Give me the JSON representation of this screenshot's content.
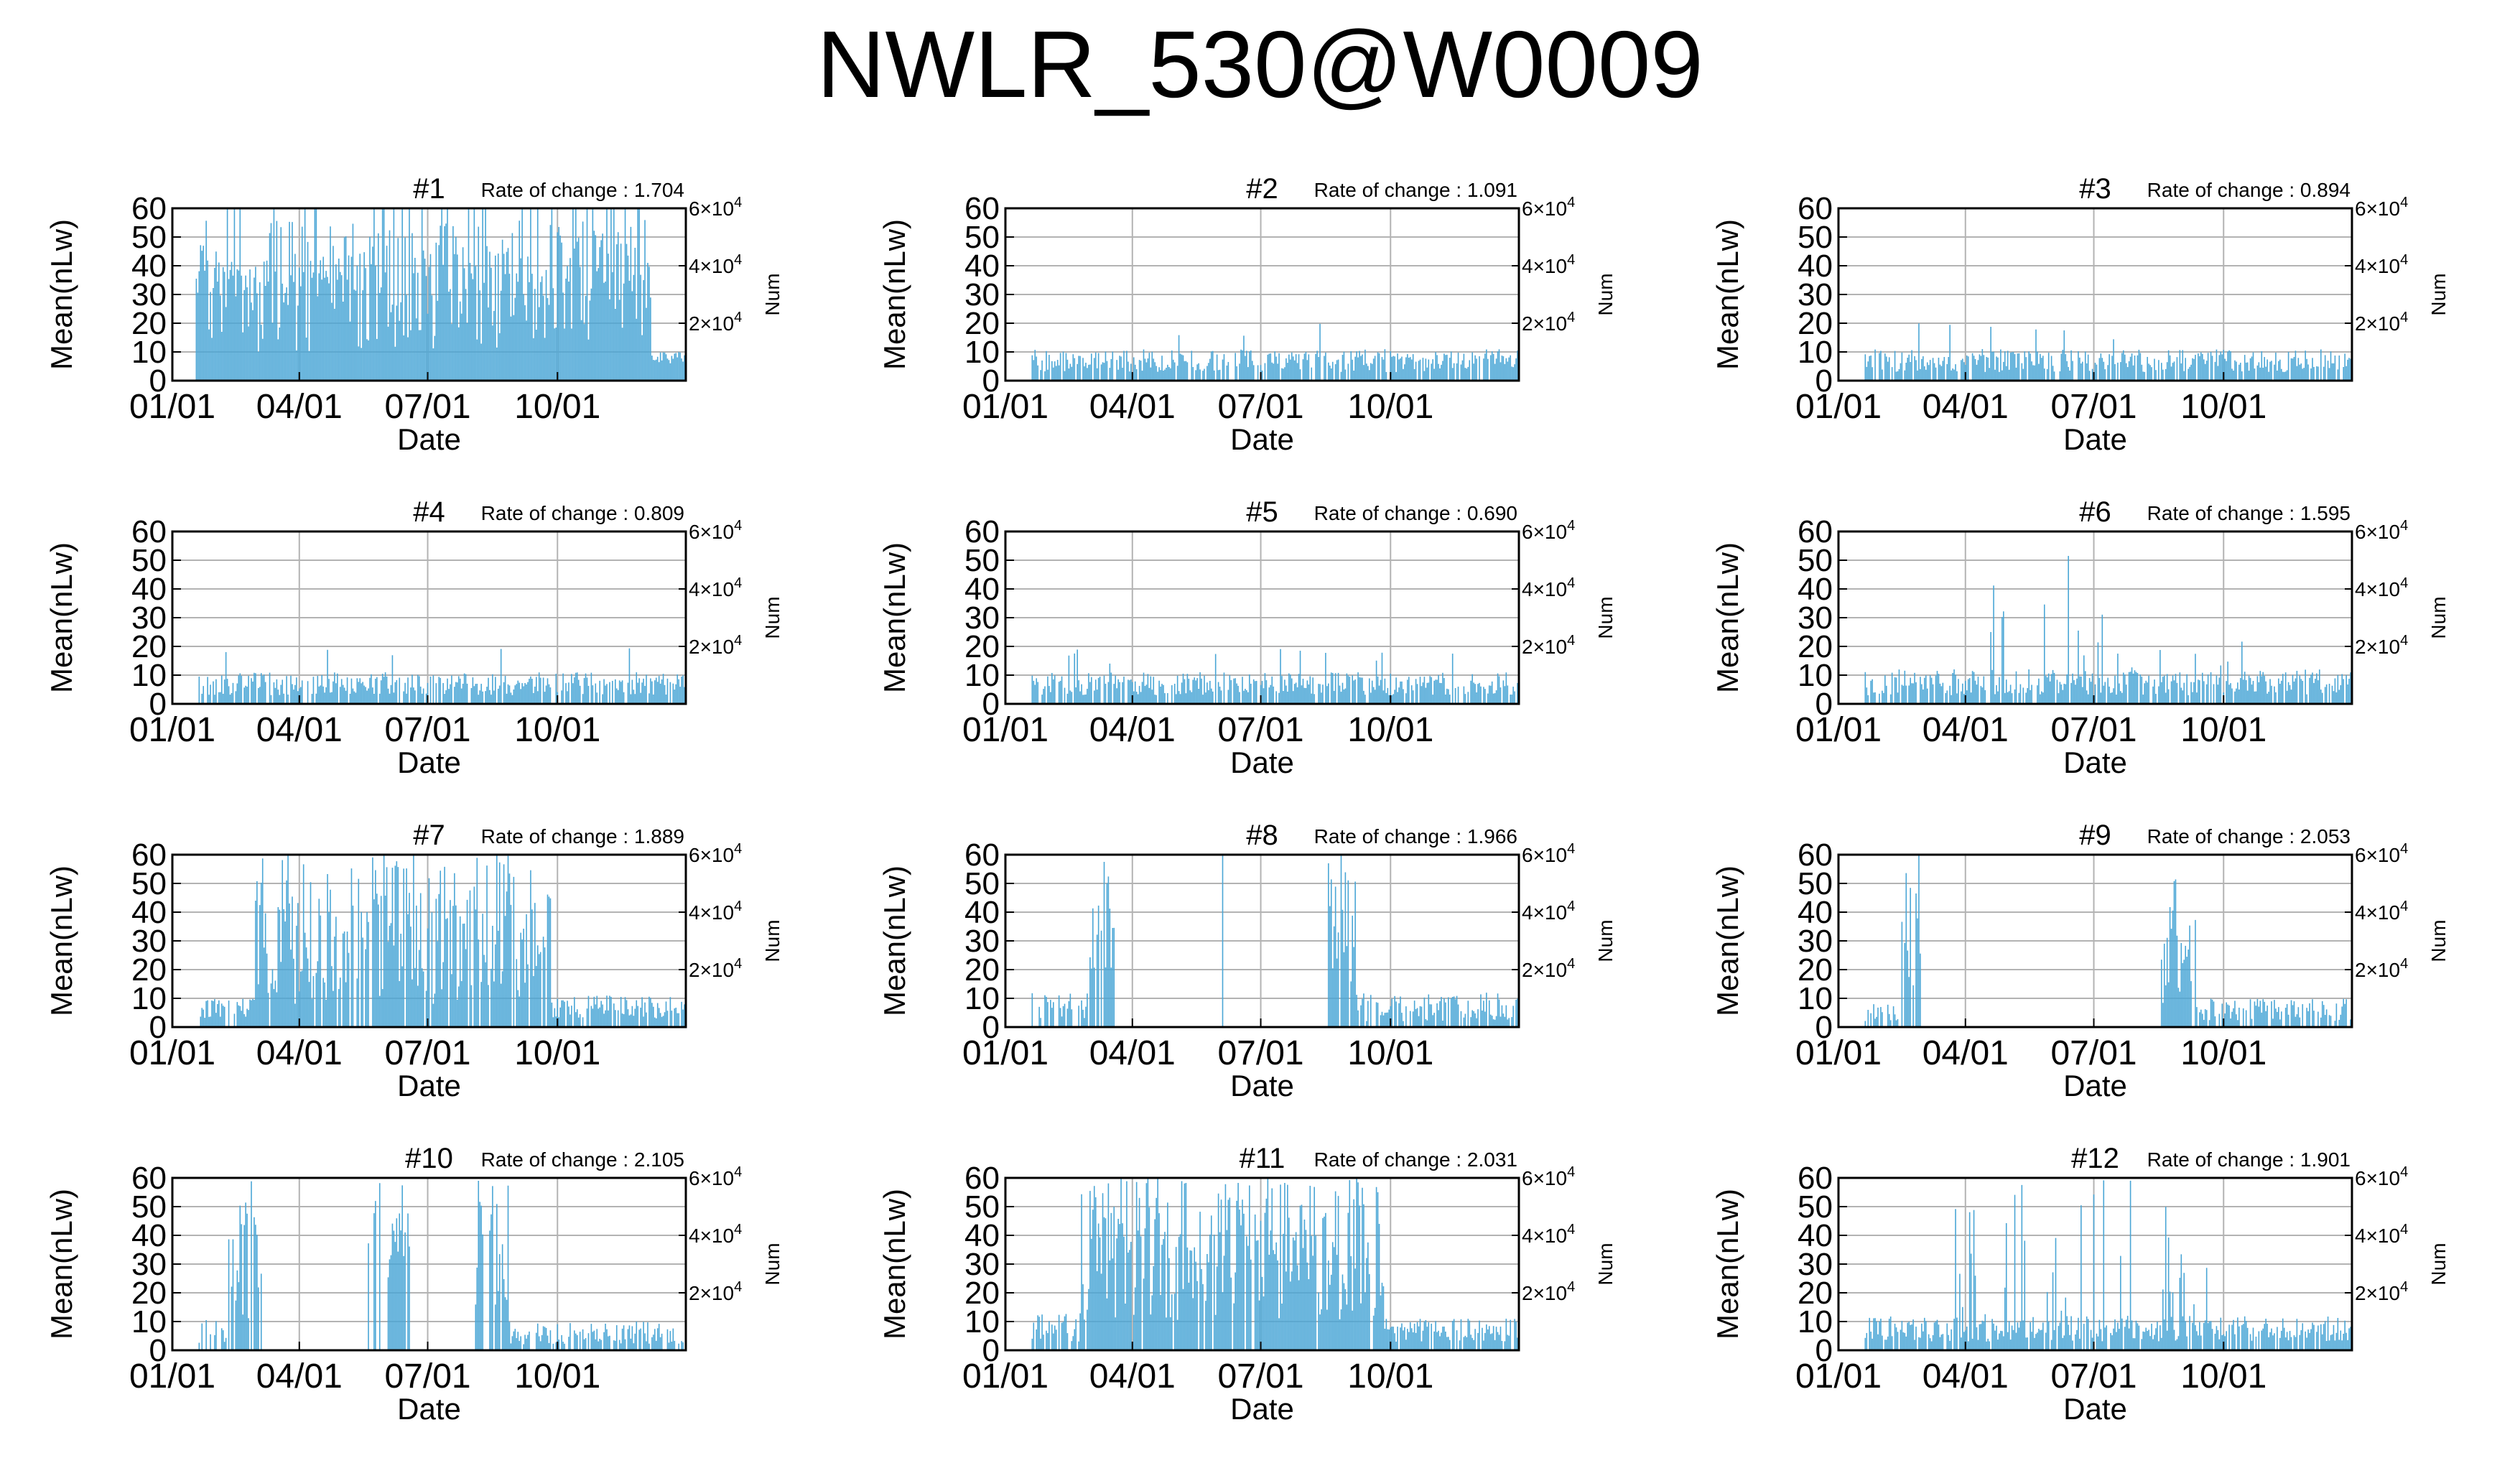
{
  "title": "NWLR_530@W0009",
  "colors": {
    "series": "#4aa6d6",
    "frame": "#000000",
    "grid": "#b3b3b3",
    "bg": "#ffffff"
  },
  "panel_axes": {
    "xlabel": "Date",
    "ylabel": "Mean(nLw)",
    "y2label": "Num",
    "yticks": [
      "0",
      "10",
      "20",
      "30",
      "40",
      "50",
      "60"
    ],
    "xticks": [
      "01/01",
      "04/01",
      "07/01",
      "10/01"
    ],
    "y2ticks": [
      {
        "base": "2×10",
        "exp": "4"
      },
      {
        "base": "4×10",
        "exp": "4"
      },
      {
        "base": "6×10",
        "exp": "4"
      }
    ]
  },
  "chart_data": [
    {
      "type": "bar",
      "title": "#1",
      "rate_of_change": "Rate of change : 1.704",
      "x_range": [
        1,
        365
      ],
      "ylim": [
        0,
        60
      ],
      "y2lim": [
        0,
        60000
      ],
      "grid": true,
      "profile": "high"
    },
    {
      "type": "bar",
      "title": "#2",
      "rate_of_change": "Rate of change : 1.091",
      "x_range": [
        1,
        365
      ],
      "ylim": [
        0,
        60
      ],
      "y2lim": [
        0,
        60000
      ],
      "grid": true,
      "profile": "low"
    },
    {
      "type": "bar",
      "title": "#3",
      "rate_of_change": "Rate of change : 0.894",
      "x_range": [
        1,
        365
      ],
      "ylim": [
        0,
        60
      ],
      "y2lim": [
        0,
        60000
      ],
      "grid": true,
      "profile": "low"
    },
    {
      "type": "bar",
      "title": "#4",
      "rate_of_change": "Rate of change : 0.809",
      "x_range": [
        1,
        365
      ],
      "ylim": [
        0,
        60
      ],
      "y2lim": [
        0,
        60000
      ],
      "grid": true,
      "profile": "low"
    },
    {
      "type": "bar",
      "title": "#5",
      "rate_of_change": "Rate of change : 0.690",
      "x_range": [
        1,
        365
      ],
      "ylim": [
        0,
        60
      ],
      "y2lim": [
        0,
        60000
      ],
      "grid": true,
      "profile": "low"
    },
    {
      "type": "bar",
      "title": "#6",
      "rate_of_change": "Rate of change : 1.595",
      "x_range": [
        1,
        365
      ],
      "ylim": [
        0,
        60
      ],
      "y2lim": [
        0,
        60000
      ],
      "grid": true,
      "profile": "spiky_mid"
    },
    {
      "type": "bar",
      "title": "#7",
      "rate_of_change": "Rate of change : 1.889",
      "x_range": [
        1,
        365
      ],
      "ylim": [
        0,
        60
      ],
      "y2lim": [
        0,
        60000
      ],
      "grid": true,
      "profile": "broad_mid"
    },
    {
      "type": "bar",
      "title": "#8",
      "rate_of_change": "Rate of change : 1.966",
      "x_range": [
        1,
        365
      ],
      "ylim": [
        0,
        60
      ],
      "y2lim": [
        0,
        60000
      ],
      "grid": true,
      "profile": "two_bursts"
    },
    {
      "type": "bar",
      "title": "#9",
      "rate_of_change": "Rate of change : 2.053",
      "x_range": [
        1,
        365
      ],
      "ylim": [
        0,
        60
      ],
      "y2lim": [
        0,
        60000
      ],
      "grid": true,
      "profile": "two_bursts_b"
    },
    {
      "type": "bar",
      "title": "#10",
      "rate_of_change": "Rate of change : 2.105",
      "x_range": [
        1,
        365
      ],
      "ylim": [
        0,
        60
      ],
      "y2lim": [
        0,
        60000
      ],
      "grid": true,
      "profile": "three_bursts"
    },
    {
      "type": "bar",
      "title": "#11",
      "rate_of_change": "Rate of change : 2.031",
      "x_range": [
        1,
        365
      ],
      "ylim": [
        0,
        60
      ],
      "y2lim": [
        0,
        60000
      ],
      "grid": true,
      "profile": "broad_high"
    },
    {
      "type": "bar",
      "title": "#12",
      "rate_of_change": "Rate of change : 1.901",
      "x_range": [
        1,
        365
      ],
      "ylim": [
        0,
        60
      ],
      "y2lim": [
        0,
        60000
      ],
      "grid": true,
      "profile": "spiky_mixed"
    }
  ]
}
